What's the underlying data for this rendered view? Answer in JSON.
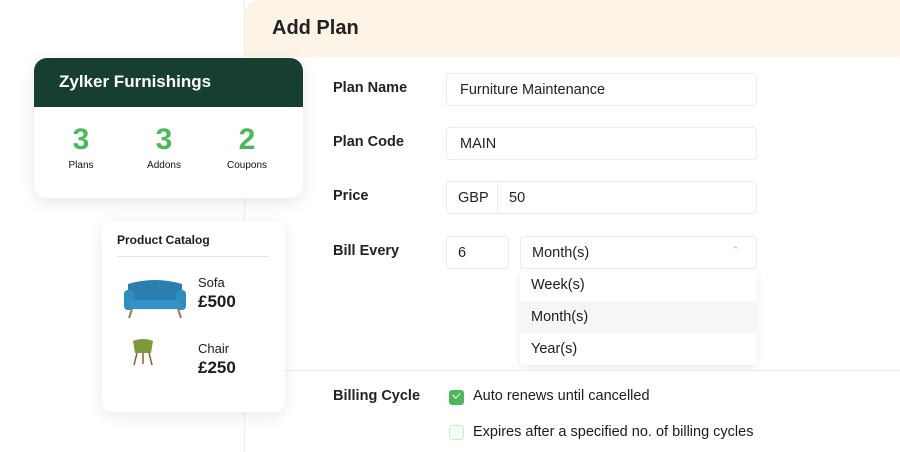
{
  "form": {
    "title": "Add Plan",
    "plan_name_label": "Plan Name",
    "plan_name_value": "Furniture Maintenance",
    "plan_code_label": "Plan Code",
    "plan_code_value": "MAIN",
    "price_label": "Price",
    "currency": "GBP",
    "price_value": "50",
    "bill_every_label": "Bill Every",
    "bill_every_value": "6",
    "period_selected": "Month(s)",
    "period_options": [
      "Week(s)",
      "Month(s)",
      "Year(s)"
    ],
    "billing_cycle_label": "Billing Cycle",
    "auto_renew_label": "Auto renews until cancelled",
    "auto_renew_checked": true,
    "expires_label": "Expires after a specified no. of billing cycles",
    "expires_checked": false
  },
  "summary": {
    "title": "Zylker Furnishings",
    "stats": [
      {
        "value": "3",
        "label": "Plans"
      },
      {
        "value": "3",
        "label": "Addons"
      },
      {
        "value": "2",
        "label": "Coupons"
      }
    ]
  },
  "catalog": {
    "title": "Product Catalog",
    "products": [
      {
        "name": "Sofa",
        "price": "£500"
      },
      {
        "name": "Chair",
        "price": "£250"
      }
    ]
  },
  "colors": {
    "brand_dark": "#173f31",
    "accent_green": "#4cb85c",
    "header_bg": "#fdf3e6"
  }
}
